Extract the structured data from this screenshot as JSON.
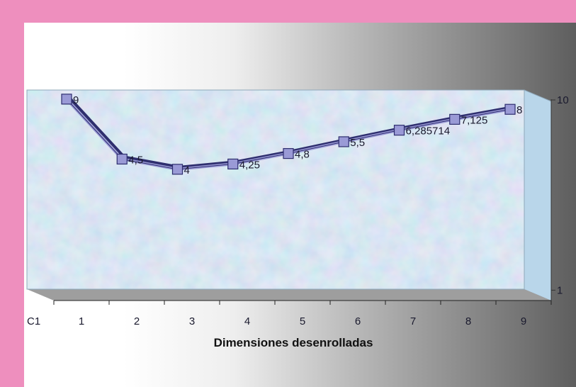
{
  "chart_data": {
    "type": "line",
    "style": "3d",
    "title": "",
    "xlabel": "Dimensiones desenrolladas",
    "ylabel": "",
    "corner_label": "C1",
    "categories": [
      "1",
      "2",
      "3",
      "4",
      "5",
      "6",
      "7",
      "8",
      "9"
    ],
    "series": [
      {
        "values": [
          9,
          4.5,
          4,
          4.25,
          4.8,
          5.5,
          6.285714,
          7.125,
          8
        ],
        "labels": [
          "9",
          "4,5",
          "4",
          "4,25",
          "4,8",
          "5,5",
          "6,285714",
          "7,125",
          "8"
        ],
        "color": "#9A9AD6",
        "marker": "square"
      }
    ],
    "yscale": "log",
    "ylim": [
      1,
      10
    ],
    "yticks": [
      "1",
      "10"
    ],
    "grid": false,
    "legend": "none",
    "colors": {
      "background": "#EE8FBE",
      "plot_wall": "#C5DDEE",
      "floor": "#9E9E9E",
      "line": "#2E2E6E",
      "marker_fill": "#9A9AD6"
    }
  }
}
